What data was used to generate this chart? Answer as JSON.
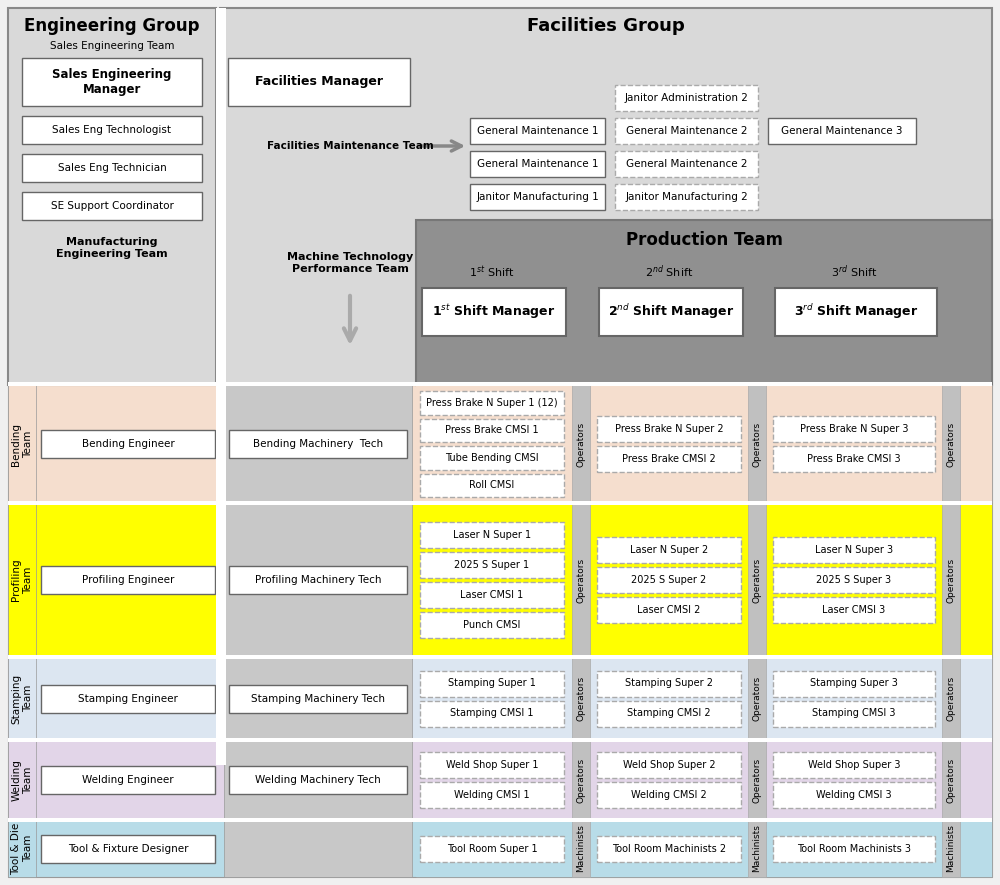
{
  "fig_width": 10.0,
  "fig_height": 8.85,
  "bg_color": "#f0f0f0",
  "eng_group_bg": "#d9d9d9",
  "fac_group_bg": "#d9d9d9",
  "prod_team_bg": "#909090",
  "bending_bg": "#f5dece",
  "profiling_bg": "#ffff00",
  "stamping_bg": "#dce6f1",
  "welding_bg": "#e2d5e8",
  "tooldie_bg": "#b8dce8",
  "mach_col_bg": "#c8c8c8",
  "op_bar_bg": "#c0c0c0",
  "white": "#ffffff",
  "eng_group_title": "Engineering Group",
  "fac_group_title": "Facilities Group",
  "prod_team_title": "Production Team",
  "sales_eng_team_label": "Sales Engineering Team",
  "mfg_eng_team_label": "Manufacturing\nEngineering Team",
  "fac_mgr_label": "Facilities Manager",
  "fac_maint_team_label": "Facilities Maintenance Team",
  "mach_tech_label": "Machine Technology\nPerformance Team",
  "sales_eng_mgr": "Sales Engineering\nManager",
  "sales_eng_tech": "Sales Eng Technologist",
  "sales_eng_techn": "Sales Eng Technician",
  "se_support": "SE Support Coordinator",
  "maint_col1": [
    "General Maintenance 1",
    "General Maintenance 1",
    "Janitor Manufacturing 1"
  ],
  "maint_col2": [
    "Janitor Administration 2",
    "General Maintenance 2",
    "General Maintenance 2",
    "Janitor Manufacturing 2"
  ],
  "maint_col3": [
    "General Maintenance 3"
  ],
  "bending_eng": "Bending Engineer",
  "bending_mach": "Bending Machinery  Tech",
  "profiling_eng": "Profiling Engineer",
  "profiling_mach": "Profiling Machinery Tech",
  "stamping_eng": "Stamping Engineer",
  "stamping_mach": "Stamping Machinery Tech",
  "welding_eng": "Welding Engineer",
  "welding_mach": "Welding Machinery Tech",
  "tooldie_eng": "Tool & Fixture Designer",
  "bending_sh1": [
    "Press Brake N Super 1 (12)",
    "Press Brake CMSI 1",
    "Tube Bending CMSI",
    "Roll CMSI"
  ],
  "bending_sh2": [
    "Press Brake N Super 2",
    "Press Brake CMSI 2"
  ],
  "bending_sh3": [
    "Press Brake N Super 3",
    "Press Brake CMSI 3"
  ],
  "profiling_sh1": [
    "Laser N Super 1",
    "2025 S Super 1",
    "Laser CMSI 1",
    "Punch CMSI"
  ],
  "profiling_sh2": [
    "Laser N Super 2",
    "2025 S Super 2",
    "Laser CMSI 2"
  ],
  "profiling_sh3": [
    "Laser N Super 3",
    "2025 S Super 3",
    "Laser CMSI 3"
  ],
  "stamping_sh1": [
    "Stamping Super 1",
    "Stamping CMSI 1"
  ],
  "stamping_sh2": [
    "Stamping Super 2",
    "Stamping CMSI 2"
  ],
  "stamping_sh3": [
    "Stamping Super 3",
    "Stamping CMSI 3"
  ],
  "welding_sh1": [
    "Weld Shop Super 1",
    "Welding CMSI 1"
  ],
  "welding_sh2": [
    "Weld Shop Super 2",
    "Welding CMSI 2"
  ],
  "welding_sh3": [
    "Weld Shop Super 3",
    "Welding CMSI 3"
  ],
  "tooldie_sh1": [
    "Tool Room Super 1"
  ],
  "tooldie_sh2": [
    "Tool Room Machinists 2"
  ],
  "tooldie_sh3": [
    "Tool Room Machinists 3"
  ],
  "team_labels": [
    "Bending\nTeam",
    "Profiling\nTeam",
    "Stamping\nTeam",
    "Welding\nTeam",
    "Tool & Die\nTeam"
  ]
}
